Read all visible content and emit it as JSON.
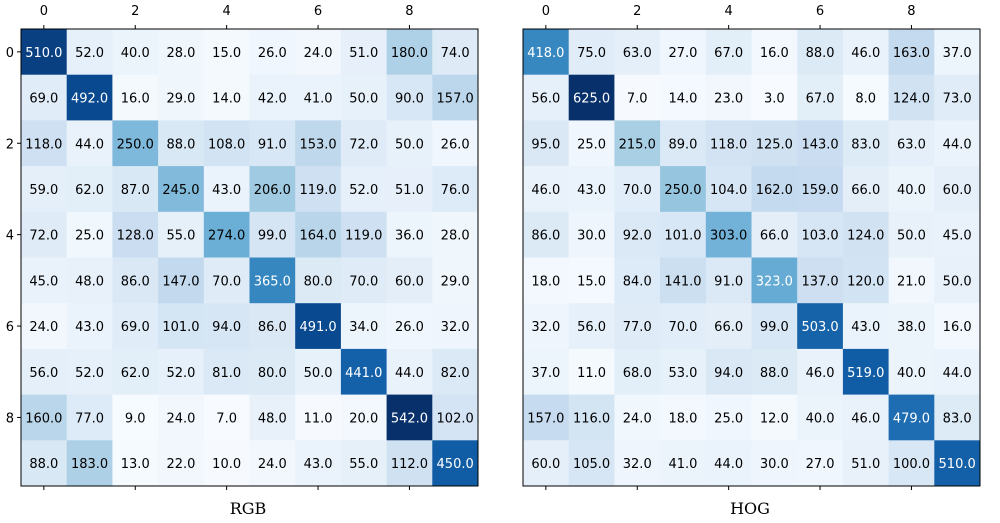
{
  "chart_data": [
    {
      "type": "heatmap",
      "title": "RGB",
      "colormap": "Blues",
      "x_ticks": [
        "0",
        "2",
        "4",
        "6",
        "8"
      ],
      "y_ticks": [
        "0",
        "2",
        "4",
        "6",
        "8"
      ],
      "vmin": 7,
      "vmax": 542,
      "matrix": [
        [
          510.0,
          52.0,
          40.0,
          28.0,
          15.0,
          26.0,
          24.0,
          51.0,
          180.0,
          74.0
        ],
        [
          69.0,
          492.0,
          16.0,
          29.0,
          14.0,
          42.0,
          41.0,
          50.0,
          90.0,
          157.0
        ],
        [
          118.0,
          44.0,
          250.0,
          88.0,
          108.0,
          91.0,
          153.0,
          72.0,
          50.0,
          26.0
        ],
        [
          59.0,
          62.0,
          87.0,
          245.0,
          43.0,
          206.0,
          119.0,
          52.0,
          51.0,
          76.0
        ],
        [
          72.0,
          25.0,
          128.0,
          55.0,
          274.0,
          99.0,
          164.0,
          119.0,
          36.0,
          28.0
        ],
        [
          45.0,
          48.0,
          86.0,
          147.0,
          70.0,
          365.0,
          80.0,
          70.0,
          60.0,
          29.0
        ],
        [
          24.0,
          43.0,
          69.0,
          101.0,
          94.0,
          86.0,
          491.0,
          34.0,
          26.0,
          32.0
        ],
        [
          56.0,
          52.0,
          62.0,
          52.0,
          81.0,
          80.0,
          50.0,
          441.0,
          44.0,
          82.0
        ],
        [
          160.0,
          77.0,
          9.0,
          24.0,
          7.0,
          48.0,
          11.0,
          20.0,
          542.0,
          102.0
        ],
        [
          88.0,
          183.0,
          13.0,
          22.0,
          10.0,
          24.0,
          43.0,
          55.0,
          112.0,
          450.0
        ]
      ]
    },
    {
      "type": "heatmap",
      "title": "HOG",
      "colormap": "Blues",
      "x_ticks": [
        "0",
        "2",
        "4",
        "6",
        "8"
      ],
      "y_ticks": [],
      "vmin": 3,
      "vmax": 625,
      "matrix": [
        [
          418.0,
          75.0,
          63.0,
          27.0,
          67.0,
          16.0,
          88.0,
          46.0,
          163.0,
          37.0
        ],
        [
          56.0,
          625.0,
          7.0,
          14.0,
          23.0,
          3.0,
          67.0,
          8.0,
          124.0,
          73.0
        ],
        [
          95.0,
          25.0,
          215.0,
          89.0,
          118.0,
          125.0,
          143.0,
          83.0,
          63.0,
          44.0
        ],
        [
          46.0,
          43.0,
          70.0,
          250.0,
          104.0,
          162.0,
          159.0,
          66.0,
          40.0,
          60.0
        ],
        [
          86.0,
          30.0,
          92.0,
          101.0,
          303.0,
          66.0,
          103.0,
          124.0,
          50.0,
          45.0
        ],
        [
          18.0,
          15.0,
          84.0,
          141.0,
          91.0,
          323.0,
          137.0,
          120.0,
          21.0,
          50.0
        ],
        [
          32.0,
          56.0,
          77.0,
          70.0,
          66.0,
          99.0,
          503.0,
          43.0,
          38.0,
          16.0
        ],
        [
          37.0,
          11.0,
          68.0,
          53.0,
          94.0,
          88.0,
          46.0,
          519.0,
          40.0,
          44.0
        ],
        [
          157.0,
          116.0,
          24.0,
          18.0,
          25.0,
          12.0,
          40.0,
          46.0,
          479.0,
          83.0
        ],
        [
          60.0,
          105.0,
          32.0,
          41.0,
          44.0,
          30.0,
          27.0,
          51.0,
          100.0,
          510.0
        ]
      ]
    }
  ]
}
